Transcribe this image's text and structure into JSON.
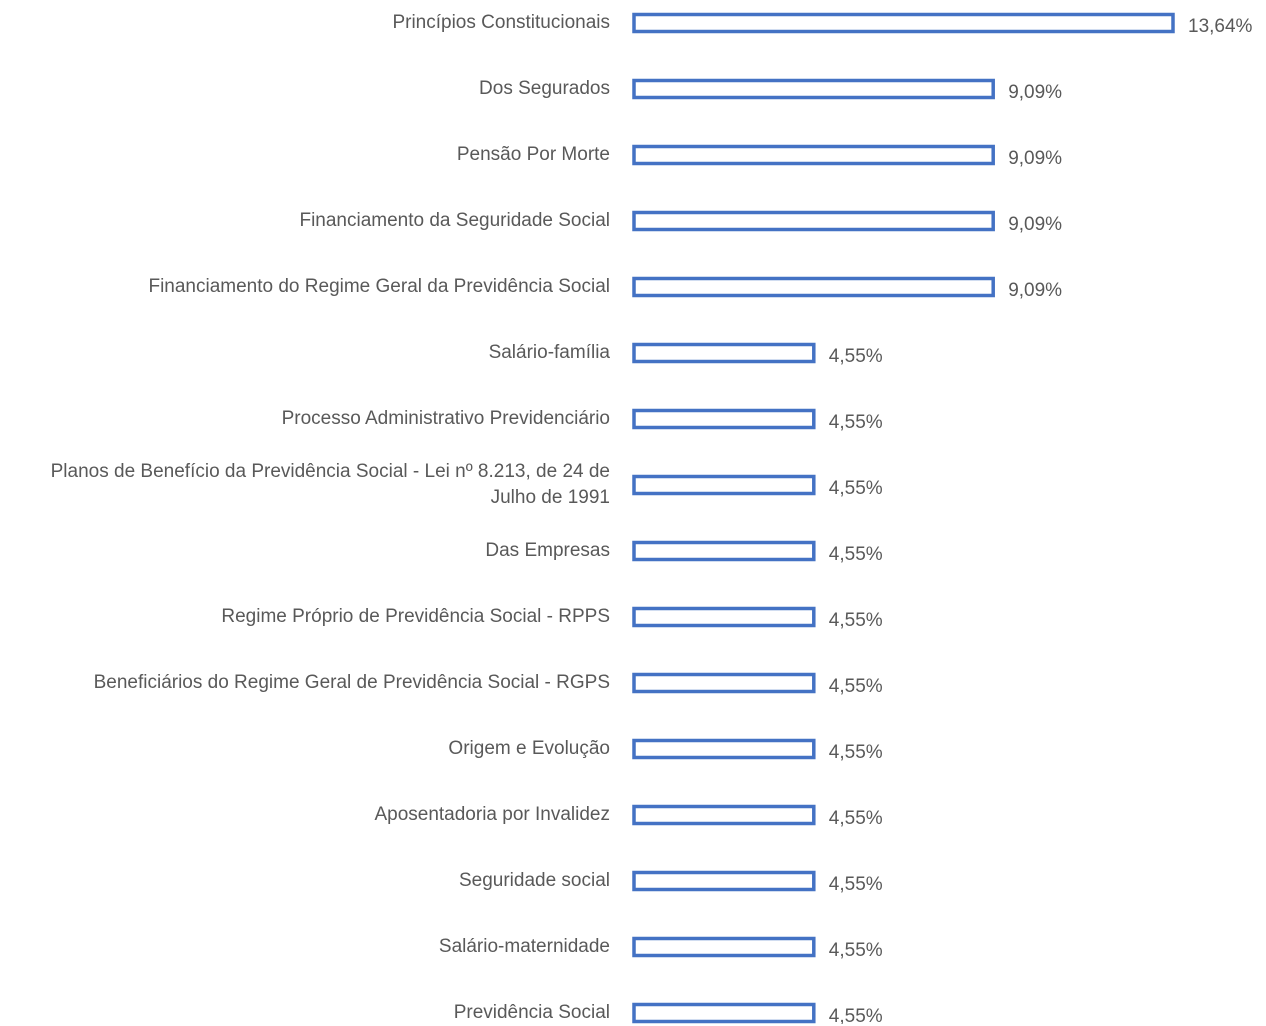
{
  "chart_data": {
    "type": "bar",
    "orientation": "horizontal",
    "color": "#4472c4",
    "categories": [
      "Princípios Constitucionais",
      "Dos Segurados",
      "Pensão Por Morte",
      "Financiamento da Seguridade Social",
      "Financiamento do Regime Geral da Previdência Social",
      "Salário-família",
      "Processo Administrativo Previdenciário",
      "Planos de Benefício da Previdência Social - Lei nº 8.213, de 24 de Julho de 1991",
      "Das Empresas",
      "Regime Próprio de Previdência Social - RPPS",
      "Beneficiários do Regime Geral de Previdência Social - RGPS",
      "Origem e Evolução",
      "Aposentadoria por Invalidez",
      "Seguridade social",
      "Salário-maternidade",
      "Previdência Social"
    ],
    "values": [
      13.64,
      9.09,
      9.09,
      9.09,
      9.09,
      4.55,
      4.55,
      4.55,
      4.55,
      4.55,
      4.55,
      4.55,
      4.55,
      4.55,
      4.55,
      4.55
    ],
    "value_labels": [
      "13,64%",
      "9,09%",
      "9,09%",
      "9,09%",
      "9,09%",
      "4,55%",
      "4,55%",
      "4,55%",
      "4,55%",
      "4,55%",
      "4,55%",
      "4,55%",
      "4,55%",
      "4,55%",
      "4,55%",
      "4,55%"
    ]
  }
}
